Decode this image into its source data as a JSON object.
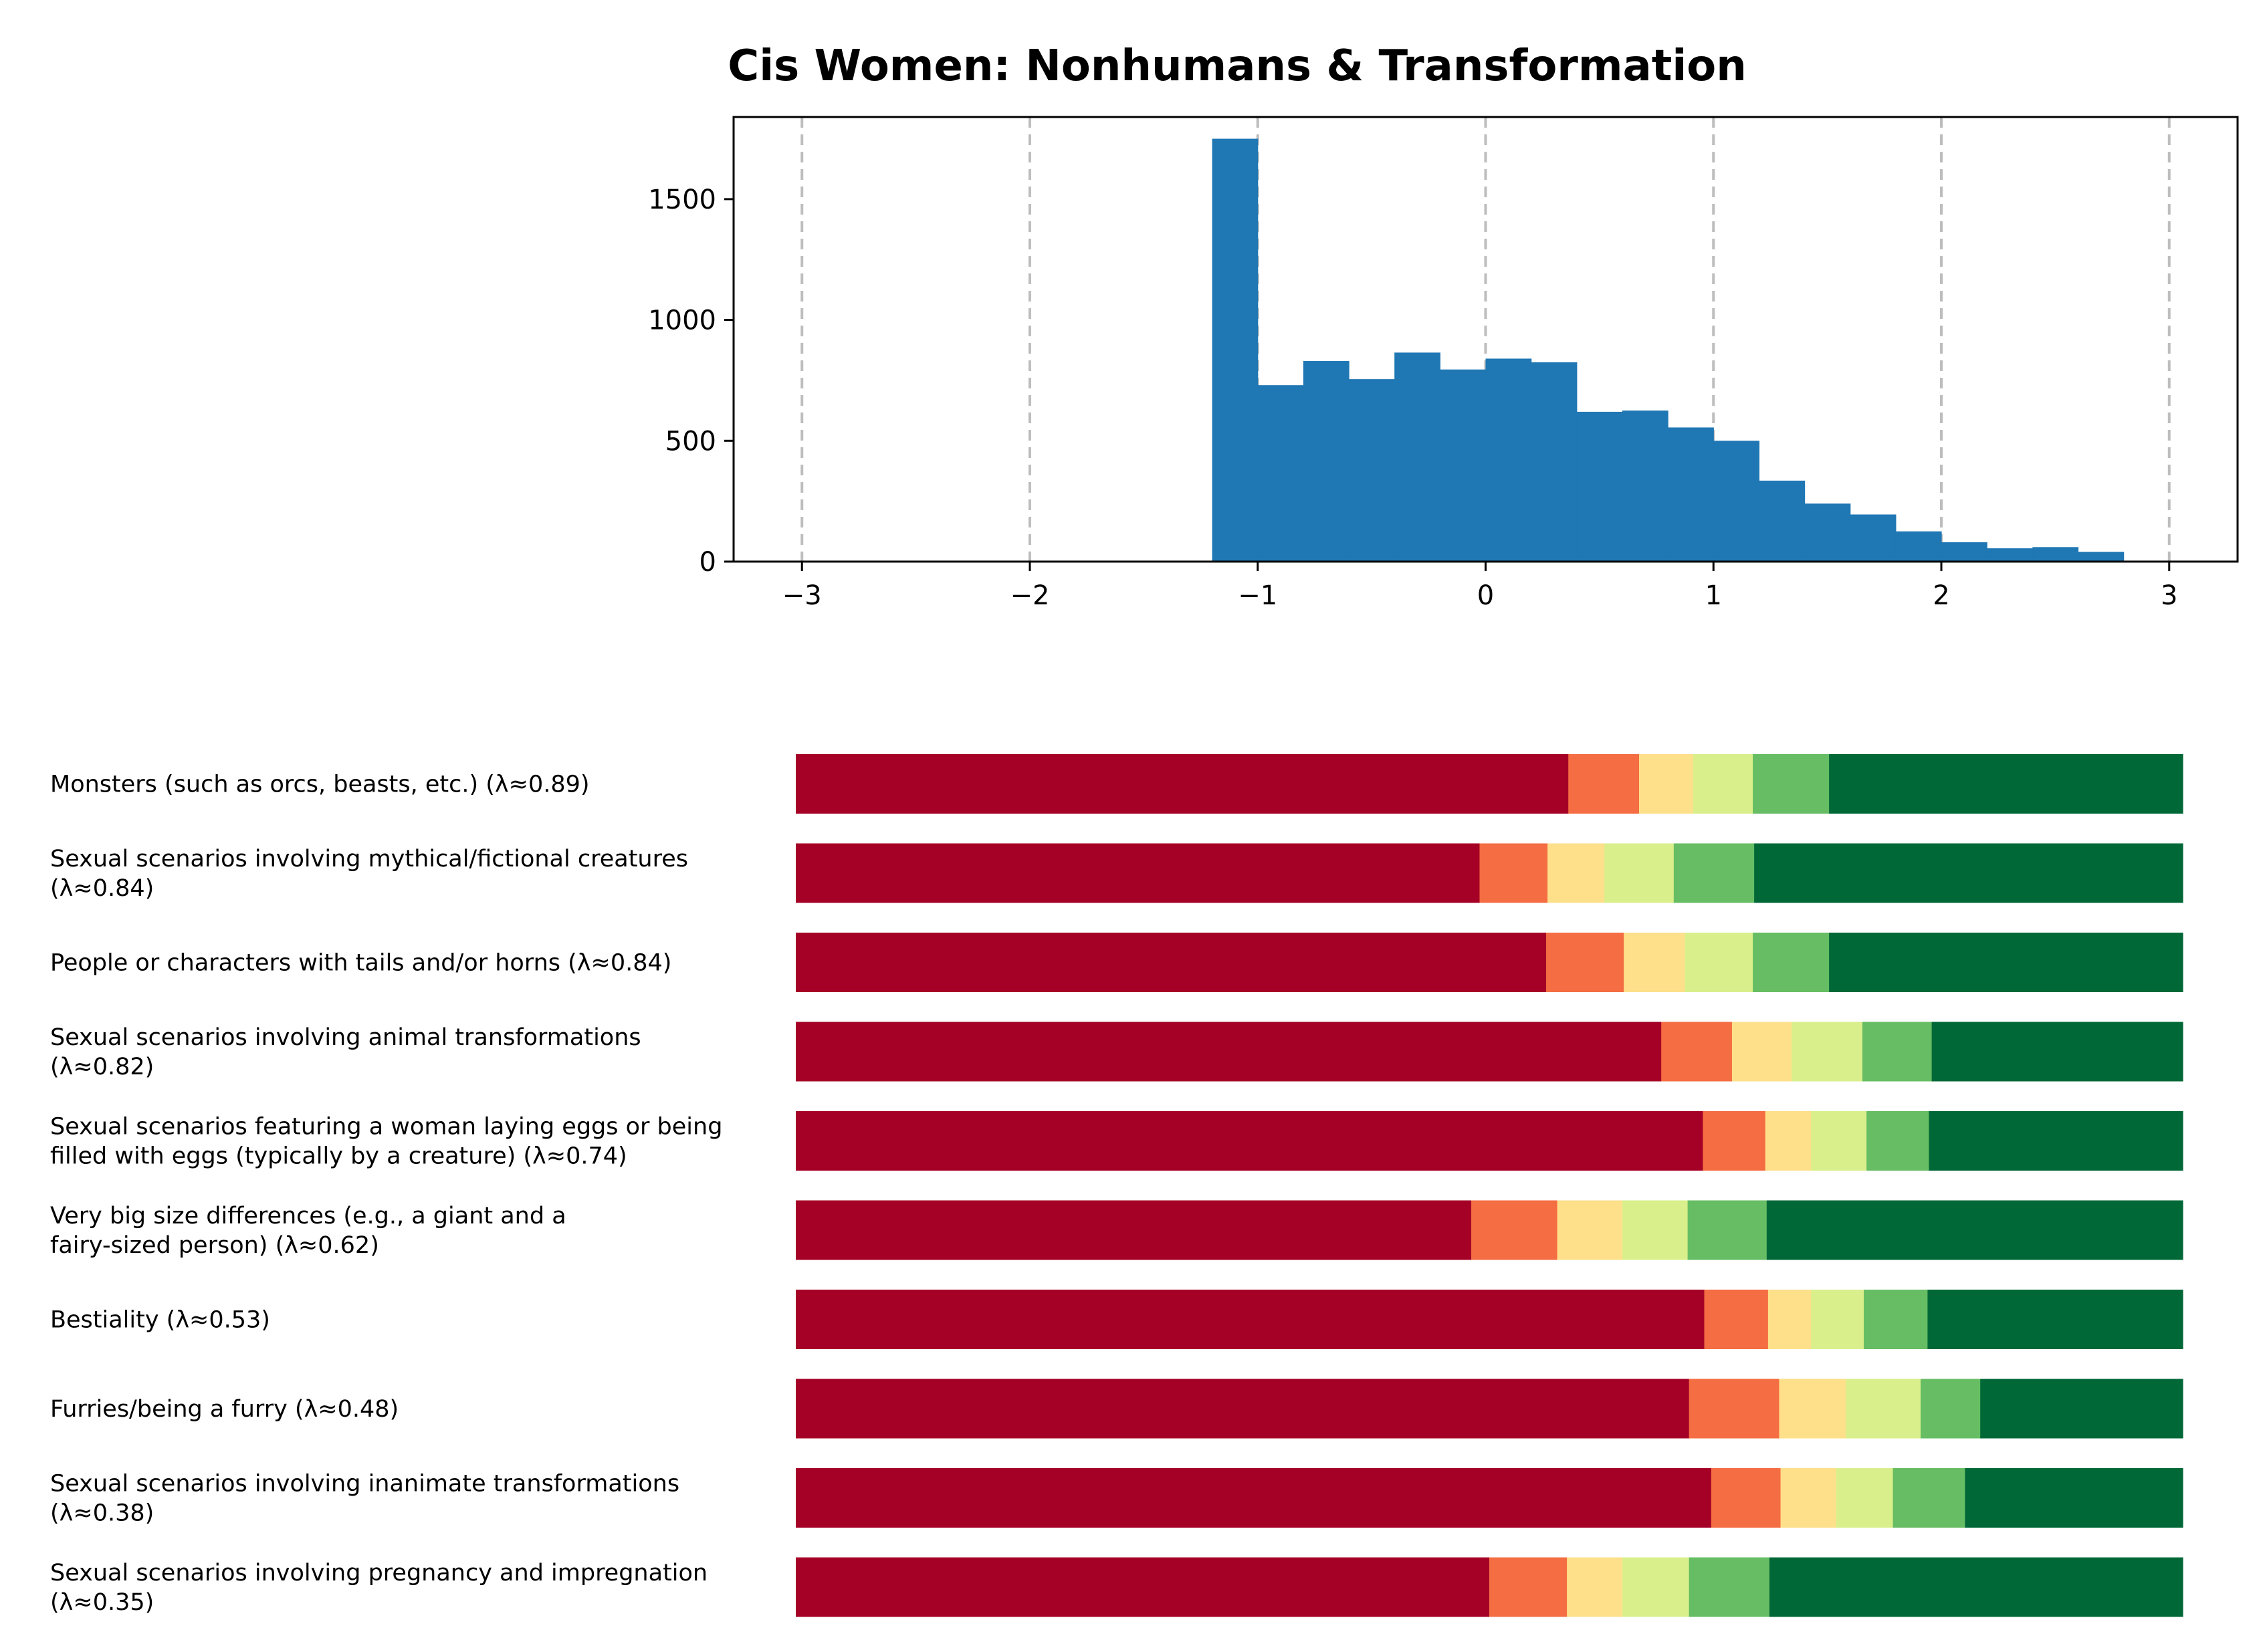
{
  "chart_data": [
    {
      "type": "bar",
      "title": "Cis Women: Nonhumans & Transformation",
      "xlabel": "",
      "ylabel": "",
      "xlim": [
        -3.3,
        3.3
      ],
      "ylim": [
        0,
        1840
      ],
      "xticks": [
        -3,
        -2,
        -1,
        0,
        1,
        2,
        3
      ],
      "xtick_labels": [
        "−3",
        "−2",
        "−1",
        "0",
        "1",
        "2",
        "3"
      ],
      "yticks": [
        0,
        500,
        1000,
        1500
      ],
      "ytick_labels": [
        "0",
        "500",
        "1000",
        "1500"
      ],
      "grid": "vertical dashed at x ticks",
      "bin_width": 0.2,
      "bin_starts": [
        -1.2,
        -1.0,
        -0.8,
        -0.6,
        -0.4,
        -0.2,
        0.0,
        0.2,
        0.4,
        0.6,
        0.8,
        1.0,
        1.2,
        1.4,
        1.6,
        1.8,
        2.0,
        2.2,
        2.4,
        2.6
      ],
      "values": [
        1750,
        730,
        830,
        755,
        865,
        795,
        840,
        825,
        620,
        625,
        555,
        500,
        335,
        240,
        195,
        125,
        80,
        55,
        60,
        40
      ],
      "color": "#1f77b4"
    },
    {
      "type": "stacked-bar",
      "orientation": "horizontal",
      "colors": [
        "#a50026",
        "#f46d43",
        "#fee08b",
        "#d9ef8b",
        "#66bd63",
        "#006837"
      ],
      "categories": [
        [
          "Monsters (such as orcs, beasts, etc.) (λ≈0.89)"
        ],
        [
          "Sexual scenarios involving mythical/fictional creatures",
          "(λ≈0.84)"
        ],
        [
          "People or characters with tails and/or horns (λ≈0.84)"
        ],
        [
          "Sexual scenarios involving animal transformations",
          "(λ≈0.82)"
        ],
        [
          "Sexual scenarios featuring a woman laying eggs or being",
          "filled with eggs (typically by a creature) (λ≈0.74)"
        ],
        [
          "Very big size differences (e.g., a giant and a",
          "fairy-sized person) (λ≈0.62)"
        ],
        [
          "Bestiality (λ≈0.53)"
        ],
        [
          "Furries/being a furry (λ≈0.48)"
        ],
        [
          "Sexual scenarios involving inanimate transformations",
          "(λ≈0.38)"
        ],
        [
          "Sexual scenarios involving pregnancy and impregnation",
          "(λ≈0.35)"
        ]
      ],
      "values": [
        [
          0.557,
          0.051,
          0.039,
          0.043,
          0.055,
          0.255
        ],
        [
          0.493,
          0.049,
          0.041,
          0.05,
          0.058,
          0.309
        ],
        [
          0.541,
          0.056,
          0.044,
          0.049,
          0.055,
          0.255
        ],
        [
          0.624,
          0.051,
          0.043,
          0.051,
          0.05,
          0.181
        ],
        [
          0.654,
          0.045,
          0.033,
          0.04,
          0.045,
          0.183
        ],
        [
          0.487,
          0.062,
          0.047,
          0.047,
          0.057,
          0.3
        ],
        [
          0.655,
          0.046,
          0.031,
          0.038,
          0.046,
          0.184
        ],
        [
          0.644,
          0.065,
          0.048,
          0.054,
          0.043,
          0.146
        ],
        [
          0.66,
          0.05,
          0.04,
          0.041,
          0.052,
          0.157
        ],
        [
          0.5,
          0.056,
          0.04,
          0.048,
          0.058,
          0.298
        ]
      ]
    }
  ]
}
